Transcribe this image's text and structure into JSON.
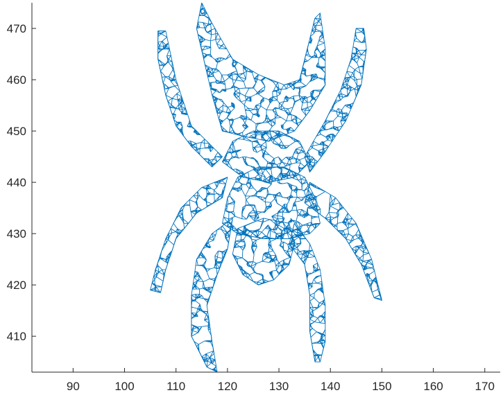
{
  "chart_data": {
    "type": "mesh",
    "title": "",
    "xlabel": "",
    "ylabel": "",
    "xlim": [
      82,
      173
    ],
    "ylim": [
      403,
      475
    ],
    "xticks": [
      90,
      100,
      110,
      120,
      130,
      140,
      150,
      160,
      170
    ],
    "yticks": [
      410,
      420,
      430,
      440,
      450,
      460,
      470
    ],
    "grid": false,
    "edge_color": "#0072BD",
    "axis_color": "#262626",
    "parts": [
      {
        "name": "body",
        "outline": [
          [
            120,
            437
          ],
          [
            122,
            441
          ],
          [
            126,
            443
          ],
          [
            131,
            443
          ],
          [
            135,
            441
          ],
          [
            137,
            437
          ],
          [
            138,
            432
          ],
          [
            136,
            430
          ],
          [
            132,
            429
          ],
          [
            127,
            429
          ],
          [
            122,
            430
          ],
          [
            119,
            432
          ]
        ]
      },
      {
        "name": "thorax",
        "outline": [
          [
            119,
            444
          ],
          [
            121,
            448
          ],
          [
            125,
            450
          ],
          [
            130,
            450
          ],
          [
            134,
            448
          ],
          [
            136,
            444
          ],
          [
            133,
            441
          ],
          [
            128,
            440
          ],
          [
            123,
            441
          ]
        ]
      },
      {
        "name": "abdomen",
        "outline": [
          [
            122,
            431
          ],
          [
            121,
            426
          ],
          [
            123,
            422
          ],
          [
            126,
            420
          ],
          [
            129,
            421
          ],
          [
            132,
            424
          ],
          [
            133,
            428
          ],
          [
            132,
            432
          ],
          [
            127,
            433
          ]
        ]
      },
      {
        "name": "head",
        "outline": [
          [
            119,
            450
          ],
          [
            117,
            457
          ],
          [
            114,
            470
          ],
          [
            115,
            475
          ],
          [
            117,
            471
          ],
          [
            121,
            464
          ],
          [
            126,
            461
          ],
          [
            131,
            459
          ],
          [
            134,
            460
          ],
          [
            137,
            472
          ],
          [
            138,
            473
          ],
          [
            139,
            466
          ],
          [
            139,
            459
          ],
          [
            136,
            454
          ],
          [
            133,
            450
          ],
          [
            128,
            448
          ],
          [
            123,
            449
          ]
        ]
      },
      {
        "name": "leg-front-left",
        "outline": [
          [
            119,
            445
          ],
          [
            113,
            451
          ],
          [
            110,
            460
          ],
          [
            108,
            469.5
          ],
          [
            106.5,
            469.5
          ],
          [
            106.5,
            464
          ],
          [
            108,
            457
          ],
          [
            110,
            451
          ],
          [
            113,
            447
          ],
          [
            117,
            443
          ]
        ]
      },
      {
        "name": "leg-front-right",
        "outline": [
          [
            135,
            445
          ],
          [
            139,
            452
          ],
          [
            142,
            458
          ],
          [
            144,
            464
          ],
          [
            145,
            470
          ],
          [
            146.5,
            470
          ],
          [
            147,
            466
          ],
          [
            146,
            459
          ],
          [
            143,
            452
          ],
          [
            139,
            446
          ],
          [
            136,
            442
          ]
        ]
      },
      {
        "name": "leg-mid-left",
        "outline": [
          [
            120,
            441
          ],
          [
            115,
            439
          ],
          [
            111,
            435
          ],
          [
            108,
            429
          ],
          [
            106,
            423
          ],
          [
            105,
            419
          ],
          [
            107,
            418.5
          ],
          [
            108,
            423
          ],
          [
            110,
            429
          ],
          [
            114,
            434
          ],
          [
            119,
            437
          ]
        ]
      },
      {
        "name": "leg-mid-right",
        "outline": [
          [
            136,
            440
          ],
          [
            141,
            437
          ],
          [
            145,
            432
          ],
          [
            148,
            425
          ],
          [
            150,
            417
          ],
          [
            148.5,
            417.5
          ],
          [
            146,
            424
          ],
          [
            143,
            429
          ],
          [
            139,
            433
          ],
          [
            135,
            436
          ]
        ]
      },
      {
        "name": "leg-back-left",
        "outline": [
          [
            121,
            433
          ],
          [
            117,
            430
          ],
          [
            114,
            425
          ],
          [
            113,
            418
          ],
          [
            113,
            410
          ],
          [
            116,
            404
          ],
          [
            118,
            403
          ],
          [
            117,
            409
          ],
          [
            116,
            416
          ],
          [
            118,
            422
          ],
          [
            120,
            427
          ]
        ]
      },
      {
        "name": "leg-back-right",
        "outline": [
          [
            133,
            432
          ],
          [
            136,
            428
          ],
          [
            138,
            423
          ],
          [
            139,
            416
          ],
          [
            139,
            409
          ],
          [
            138,
            405
          ],
          [
            137,
            405
          ],
          [
            136,
            411
          ],
          [
            136,
            418
          ],
          [
            135,
            424
          ],
          [
            132,
            428
          ]
        ]
      }
    ]
  }
}
